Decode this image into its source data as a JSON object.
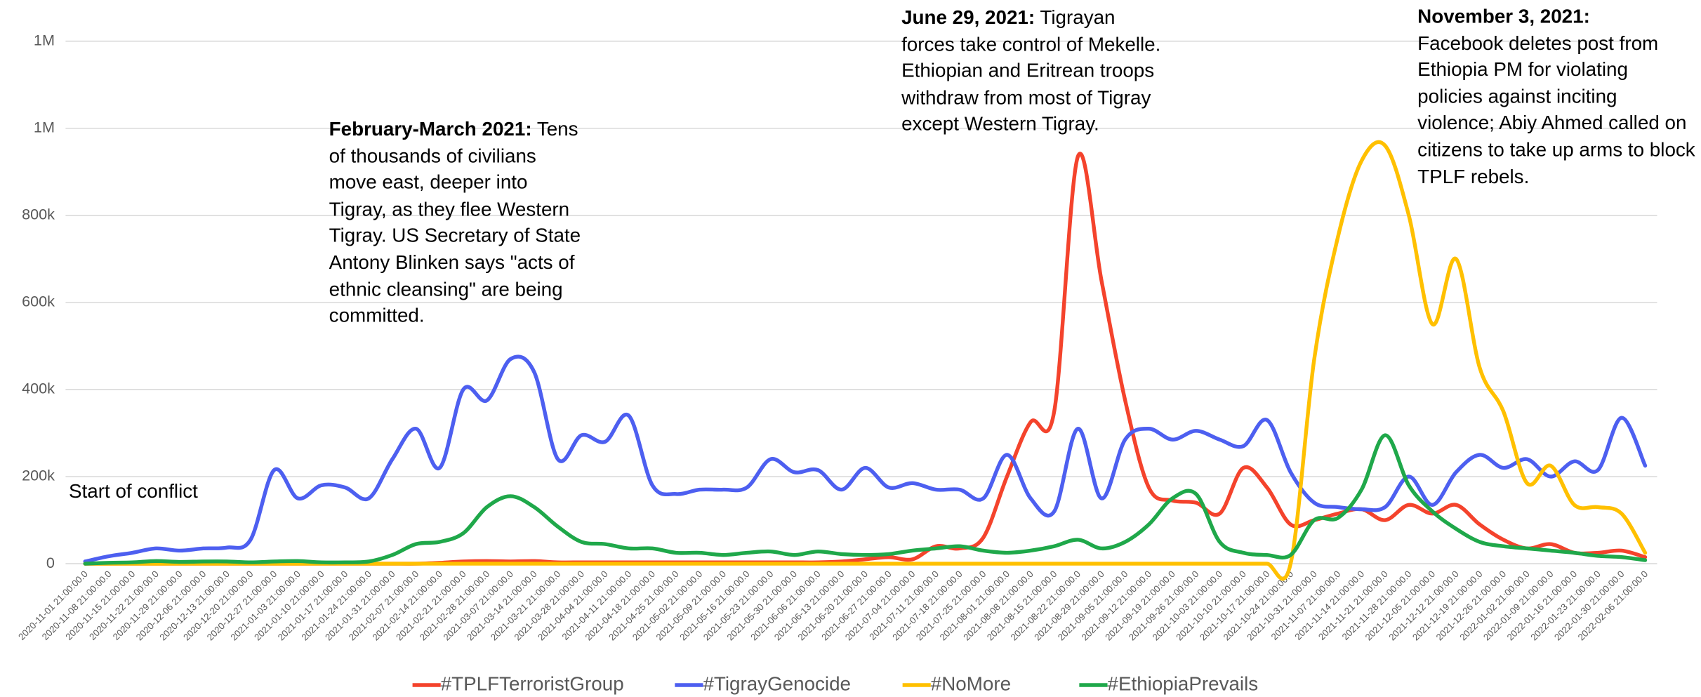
{
  "chart_data": {
    "type": "line",
    "categories": [
      "2020-11-01 21:00:00.0",
      "2020-11-08 21:00:00.0",
      "2020-11-15 21:00:00.0",
      "2020-11-22 21:00:00.0",
      "2020-11-29 21:00:00.0",
      "2020-12-06 21:00:00.0",
      "2020-12-13 21:00:00.0",
      "2020-12-20 21:00:00.0",
      "2020-12-27 21:00:00.0",
      "2021-01-03 21:00:00.0",
      "2021-01-10 21:00:00.0",
      "2021-01-17 21:00:00.0",
      "2021-01-24 21:00:00.0",
      "2021-01-31 21:00:00.0",
      "2021-02-07 21:00:00.0",
      "2021-02-14 21:00:00.0",
      "2021-02-21 21:00:00.0",
      "2021-02-28 21:00:00.0",
      "2021-03-07 21:00:00.0",
      "2021-03-14 21:00:00.0",
      "2021-03-21 21:00:00.0",
      "2021-03-28 21:00:00.0",
      "2021-04-04 21:00:00.0",
      "2021-04-11 21:00:00.0",
      "2021-04-18 21:00:00.0",
      "2021-04-25 21:00:00.0",
      "2021-05-02 21:00:00.0",
      "2021-05-09 21:00:00.0",
      "2021-05-16 21:00:00.0",
      "2021-05-23 21:00:00.0",
      "2021-05-30 21:00:00.0",
      "2021-06-06 21:00:00.0",
      "2021-06-13 21:00:00.0",
      "2021-06-20 21:00:00.0",
      "2021-06-27 21:00:00.0",
      "2021-07-04 21:00:00.0",
      "2021-07-11 21:00:00.0",
      "2021-07-18 21:00:00.0",
      "2021-07-25 21:00:00.0",
      "2021-08-01 21:00:00.0",
      "2021-08-08 21:00:00.0",
      "2021-08-15 21:00:00.0",
      "2021-08-22 21:00:00.0",
      "2021-08-29 21:00:00.0",
      "2021-09-05 21:00:00.0",
      "2021-09-12 21:00:00.0",
      "2021-09-19 21:00:00.0",
      "2021-09-26 21:00:00.0",
      "2021-10-03 21:00:00.0",
      "2021-10-10 21:00:00.0",
      "2021-10-17 21:00:00.0",
      "2021-10-24 21:00:00.0",
      "2021-10-31 21:00:00.0",
      "2021-11-07 21:00:00.0",
      "2021-11-14 21:00:00.0",
      "2021-11-21 21:00:00.0",
      "2021-11-28 21:00:00.0",
      "2021-12-05 21:00:00.0",
      "2021-12-12 21:00:00.0",
      "2021-12-19 21:00:00.0",
      "2021-12-26 21:00:00.0",
      "2022-01-02 21:00:00.0",
      "2022-01-09 21:00:00.0",
      "2022-01-16 21:00:00.0",
      "2022-01-23 21:00:00.0",
      "2022-01-30 21:00:00.0",
      "2022-02-06 21:00:00.0"
    ],
    "series": [
      {
        "name": "#TPLFTerroristGroup",
        "color": "#f4432c",
        "values": [
          0,
          0,
          0,
          0,
          0,
          0,
          0,
          0,
          0,
          0,
          0,
          0,
          0,
          0,
          0,
          2000,
          5000,
          6000,
          5000,
          6000,
          3000,
          3000,
          3000,
          3000,
          3000,
          3000,
          3000,
          3000,
          3000,
          3000,
          3000,
          3000,
          5000,
          10000,
          15000,
          10000,
          40000,
          35000,
          60000,
          200000,
          325000,
          350000,
          935000,
          650000,
          375000,
          175000,
          145000,
          140000,
          115000,
          220000,
          175000,
          90000,
          100000,
          115000,
          125000,
          100000,
          135000,
          115000,
          135000,
          90000,
          55000,
          35000,
          45000,
          25000,
          25000,
          30000,
          15000
        ]
      },
      {
        "name": "#TigrayGenocide",
        "color": "#4d5ff0",
        "values": [
          5000,
          17000,
          25000,
          35000,
          30000,
          35000,
          37000,
          55000,
          215000,
          150000,
          180000,
          175000,
          150000,
          240000,
          310000,
          220000,
          400000,
          375000,
          470000,
          440000,
          240000,
          295000,
          280000,
          340000,
          180000,
          160000,
          170000,
          170000,
          175000,
          240000,
          210000,
          215000,
          170000,
          220000,
          175000,
          185000,
          170000,
          170000,
          150000,
          250000,
          150000,
          120000,
          310000,
          150000,
          285000,
          310000,
          285000,
          305000,
          285000,
          270000,
          330000,
          210000,
          140000,
          130000,
          125000,
          130000,
          200000,
          135000,
          210000,
          250000,
          220000,
          240000,
          200000,
          235000,
          215000,
          335000,
          225000
        ]
      },
      {
        "name": "#NoMore",
        "color": "#ffc000",
        "values": [
          0,
          0,
          0,
          0,
          0,
          0,
          0,
          0,
          0,
          0,
          0,
          0,
          0,
          0,
          0,
          0,
          0,
          0,
          0,
          0,
          0,
          0,
          0,
          0,
          0,
          0,
          0,
          0,
          0,
          0,
          0,
          0,
          0,
          0,
          0,
          0,
          0,
          0,
          0,
          0,
          0,
          0,
          0,
          0,
          0,
          0,
          0,
          0,
          0,
          0,
          0,
          0,
          470000,
          750000,
          925000,
          960000,
          800000,
          550000,
          700000,
          450000,
          350000,
          185000,
          225000,
          135000,
          130000,
          115000,
          25000
        ]
      },
      {
        "name": "#EthiopiaPrevails",
        "color": "#1fa84a",
        "values": [
          0,
          2000,
          3000,
          6000,
          4000,
          5000,
          5000,
          3000,
          5000,
          6000,
          3000,
          3000,
          5000,
          20000,
          45000,
          50000,
          70000,
          130000,
          155000,
          130000,
          85000,
          50000,
          45000,
          35000,
          35000,
          25000,
          25000,
          20000,
          25000,
          28000,
          20000,
          28000,
          22000,
          20000,
          22000,
          30000,
          35000,
          40000,
          30000,
          25000,
          30000,
          40000,
          55000,
          35000,
          50000,
          90000,
          150000,
          160000,
          50000,
          25000,
          20000,
          20000,
          100000,
          105000,
          170000,
          295000,
          180000,
          120000,
          80000,
          50000,
          40000,
          35000,
          30000,
          25000,
          18000,
          15000,
          8000
        ]
      }
    ],
    "ylim": [
      0,
      1200000
    ],
    "yticks": [
      0,
      {
        "value": 200000,
        "label": "200k"
      },
      {
        "value": 400000,
        "label": "400k"
      },
      {
        "value": 600000,
        "label": "600k"
      },
      {
        "value": 800000,
        "label": "800k"
      },
      {
        "value": 1000000,
        "label": "1M"
      },
      {
        "value": 1200000,
        "label": "1M"
      }
    ],
    "grid": true,
    "legend": "bottom",
    "annotations": [
      {
        "text": "Start of conflict"
      },
      {
        "heading": "February-March 2021:",
        "text": "Tens of thousands of civilians move east, deeper into Tigray, as they flee Western Tigray. US Secretary of State Antony Blinken says \"acts of ethnic cleansing\" are being committed."
      },
      {
        "heading": "June 29, 2021:",
        "text": "Tigrayan forces take control of Mekelle. Ethiopian and Eritrean troops withdraw from most of Tigray except Western Tigray."
      },
      {
        "heading": "November 3, 2021:",
        "text": "Facebook deletes post from Ethiopia PM for violating policies against inciting violence; Abiy Ahmed called on citizens to take up arms to block TPLF rebels."
      }
    ]
  }
}
